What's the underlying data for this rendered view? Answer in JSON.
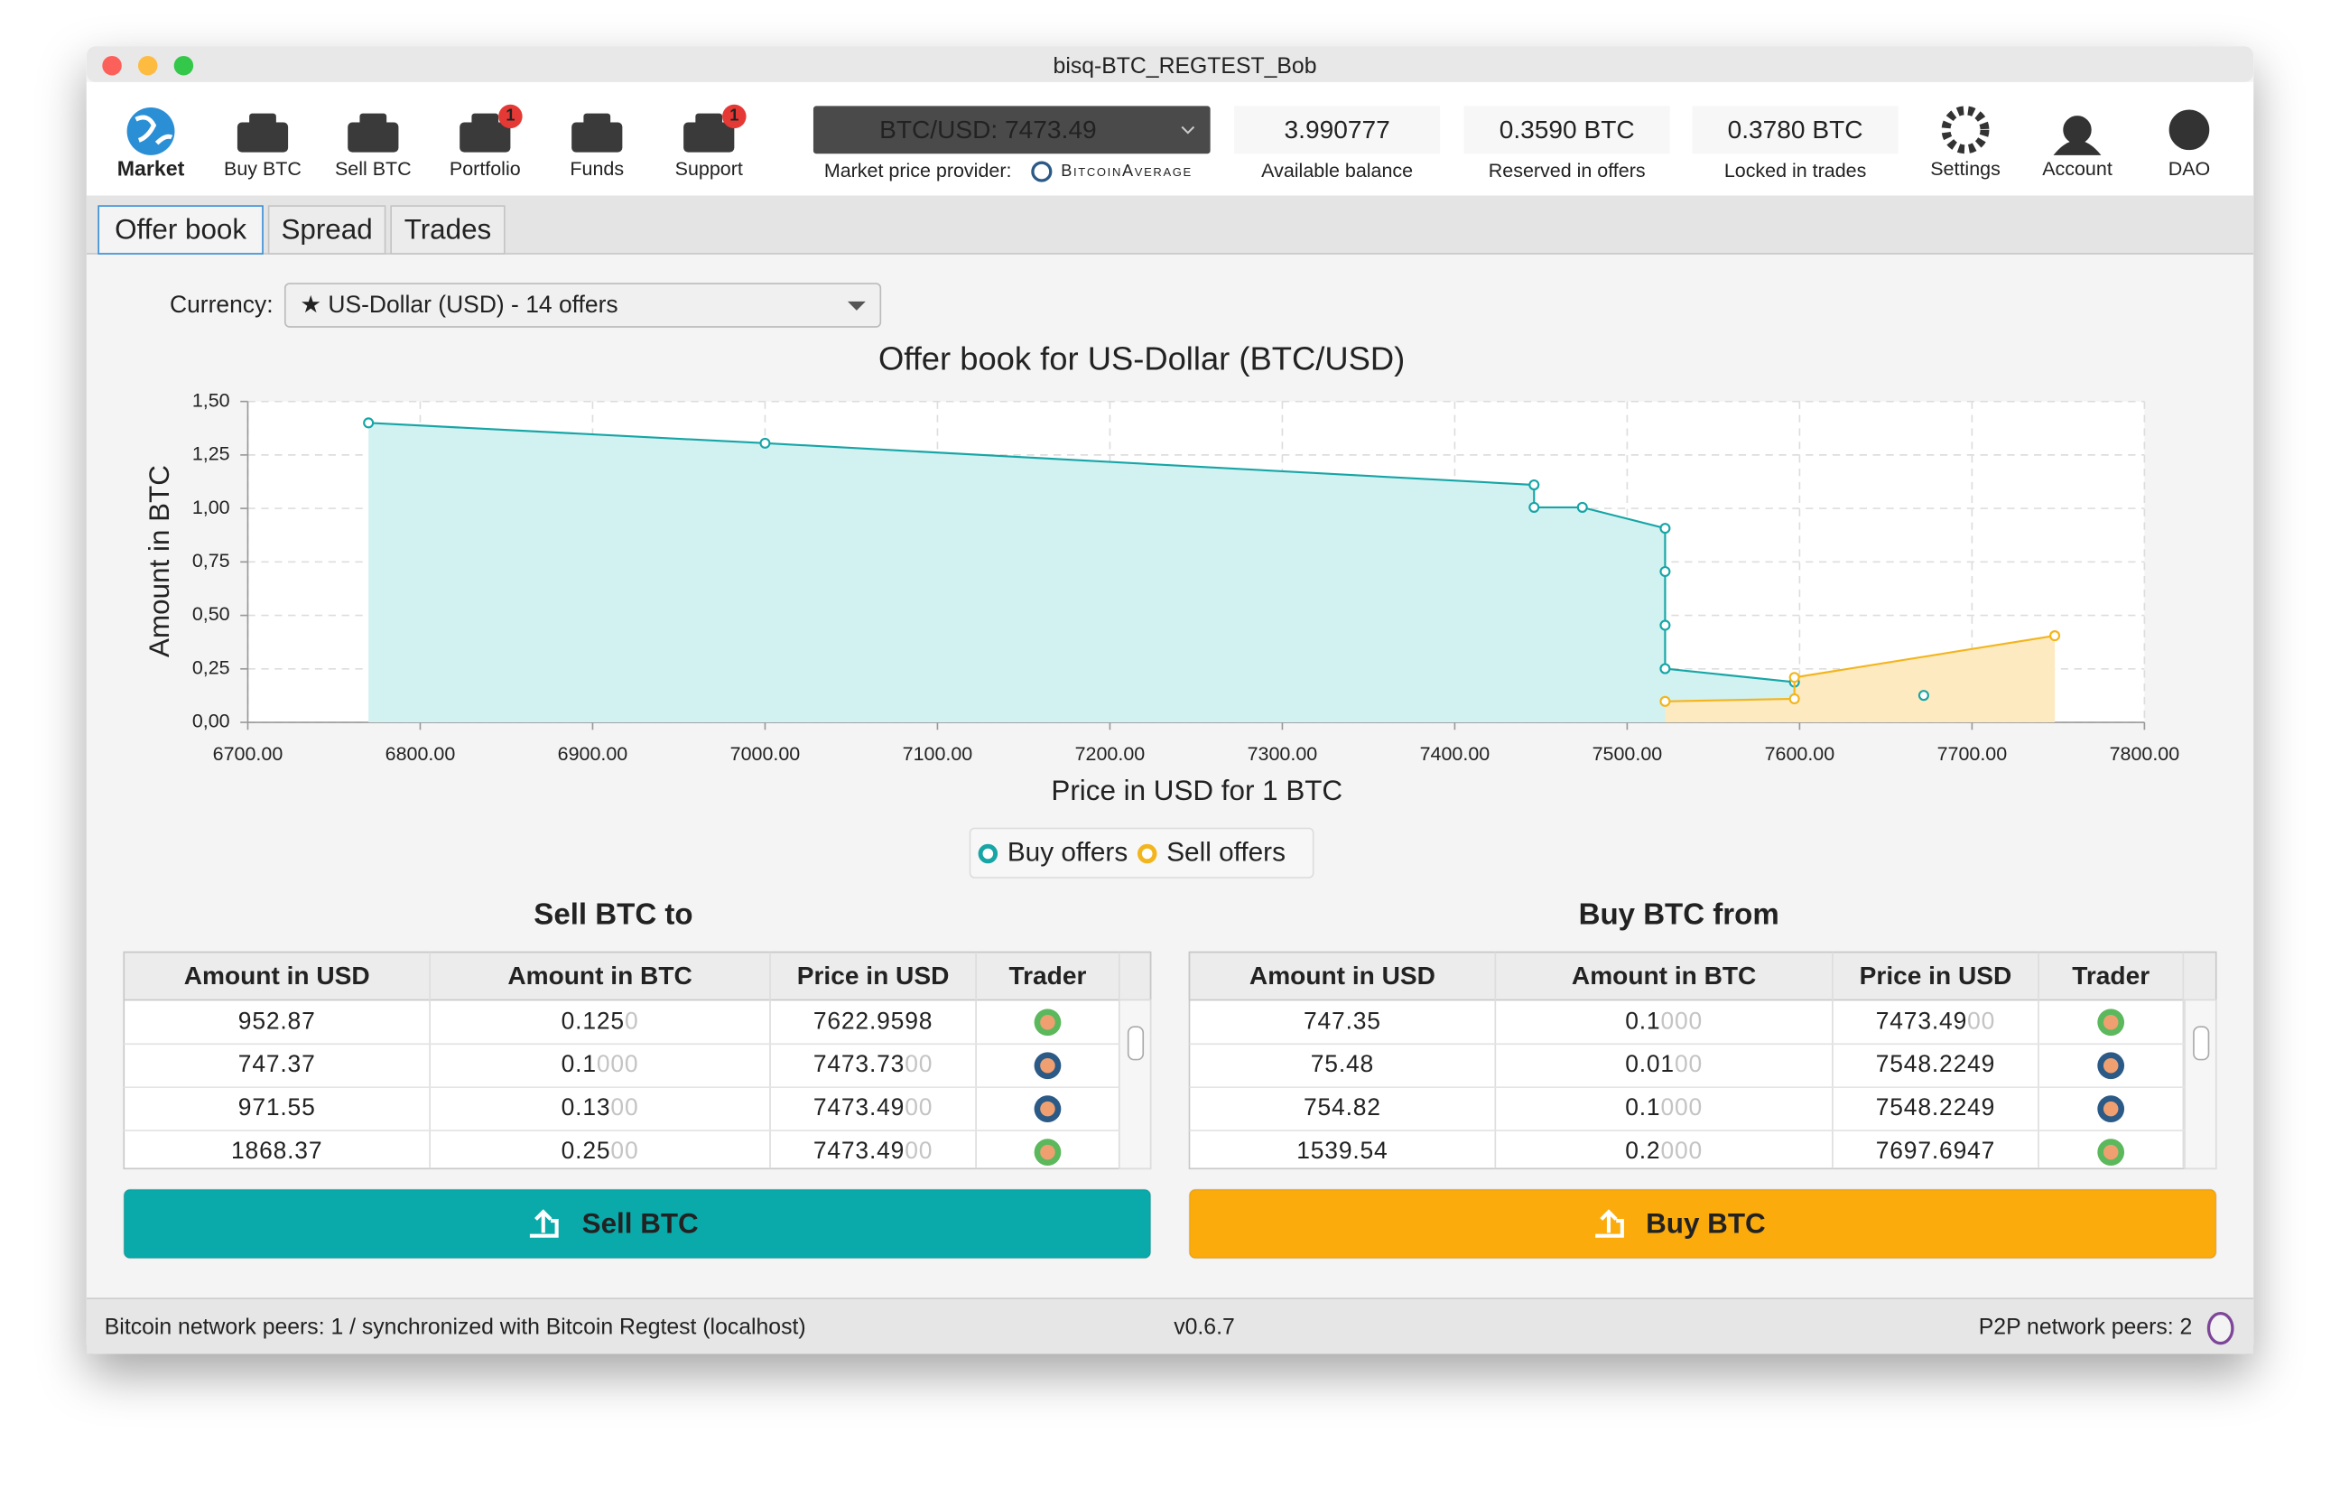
{
  "window": {
    "title": "bisq-BTC_REGTEST_Bob"
  },
  "toolbar": {
    "nav": [
      {
        "label": "Market"
      },
      {
        "label": "Buy BTC"
      },
      {
        "label": "Sell BTC"
      },
      {
        "label": "Portfolio",
        "badge": "1"
      },
      {
        "label": "Funds"
      },
      {
        "label": "Support",
        "badge": "1"
      }
    ],
    "price": {
      "value": "BTC/USD: 7473.49",
      "provider_label": "Market price provider:",
      "provider": "BitcoinAverage"
    },
    "balances": [
      {
        "value": "3.990777",
        "label": "Available balance"
      },
      {
        "value": "0.3590 BTC",
        "label": "Reserved in offers"
      },
      {
        "value": "0.3780 BTC",
        "label": "Locked in trades"
      }
    ],
    "right_nav": [
      {
        "label": "Settings"
      },
      {
        "label": "Account"
      },
      {
        "label": "DAO"
      }
    ]
  },
  "tabs": [
    "Offer book",
    "Spread",
    "Trades"
  ],
  "currency": {
    "label": "Currency:",
    "value": "★ US-Dollar (USD) - 14 offers"
  },
  "chart_data": {
    "type": "area",
    "title": "Offer book for US-Dollar (BTC/USD)",
    "x_label": "Price in USD for 1 BTC",
    "y_label": "Amount in BTC",
    "xlim": [
      6700,
      7800
    ],
    "xticks": [
      {
        "value": 6700,
        "label": "6700.00"
      },
      {
        "value": 6800,
        "label": "6800.00"
      },
      {
        "value": 6900,
        "label": "6900.00"
      },
      {
        "value": 7000,
        "label": "7000.00"
      },
      {
        "value": 7100,
        "label": "7100.00"
      },
      {
        "value": 7200,
        "label": "7200.00"
      },
      {
        "value": 7300,
        "label": "7300.00"
      },
      {
        "value": 7400,
        "label": "7400.00"
      },
      {
        "value": 7500,
        "label": "7500.00"
      },
      {
        "value": 7600,
        "label": "7600.00"
      },
      {
        "value": 7700,
        "label": "7700.00"
      },
      {
        "value": 7800,
        "label": "7800.00"
      }
    ],
    "ylim": [
      0,
      1.5
    ],
    "yticks": [
      {
        "value": 0,
        "label": "0,00"
      },
      {
        "value": 0.25,
        "label": "0,25"
      },
      {
        "value": 0.5,
        "label": "0,50"
      },
      {
        "value": 0.75,
        "label": "0,75"
      },
      {
        "value": 1,
        "label": "1,00"
      },
      {
        "value": 1.25,
        "label": "1,25"
      },
      {
        "value": 1.5,
        "label": "1,50"
      }
    ],
    "grid": true,
    "series": [
      {
        "name": "Buy offers",
        "color": "#17a5a6",
        "fill": "#d2f1f1",
        "x": [
          6770,
          7000,
          7446,
          7446,
          7474,
          7522,
          7522,
          7522,
          7522,
          7597,
          null,
          7672
        ],
        "values": [
          1.4,
          1.305,
          1.11,
          1.005,
          1.005,
          0.907,
          0.705,
          0.454,
          0.251,
          0.188,
          null,
          0.126
        ]
      },
      {
        "name": "Sell offers",
        "color": "#f3b51d",
        "fill": "#fdeac0",
        "x": [
          7522,
          7597,
          7597,
          7748
        ],
        "values": [
          0.098,
          0.11,
          0.21,
          0.405
        ]
      }
    ]
  },
  "sell_table": {
    "title": "Sell BTC to",
    "columns": [
      "Amount in USD",
      "Amount in BTC",
      "Price in USD",
      "Trader"
    ],
    "rows": [
      [
        "952.87",
        {
          "main": "0.125",
          "pad": "0"
        },
        "7622.9598"
      ],
      [
        "747.37",
        {
          "main": "0.1",
          "pad": "000"
        },
        {
          "main": "7473.73",
          "pad": "00"
        }
      ],
      [
        "971.55",
        {
          "main": "0.13",
          "pad": "00"
        },
        {
          "main": "7473.49",
          "pad": "00"
        }
      ],
      [
        "1868.37",
        {
          "main": "0.25",
          "pad": "00"
        },
        {
          "main": "7473.49",
          "pad": "00"
        }
      ]
    ],
    "button": "Sell BTC"
  },
  "buy_table": {
    "title": "Buy BTC from",
    "columns": [
      "Amount in USD",
      "Amount in BTC",
      "Price in USD",
      "Trader"
    ],
    "rows": [
      [
        "747.35",
        {
          "main": "0.1",
          "pad": "000"
        },
        {
          "main": "7473.49",
          "pad": "00"
        }
      ],
      [
        "75.48",
        {
          "main": "0.01",
          "pad": "00"
        },
        "7548.2249"
      ],
      [
        "754.82",
        {
          "main": "0.1",
          "pad": "000"
        },
        "7548.2249"
      ],
      [
        "1539.54",
        {
          "main": "0.2",
          "pad": "000"
        },
        "7697.6947"
      ]
    ],
    "button": "Buy BTC"
  },
  "status": {
    "left": "Bitcoin network peers: 1 / synchronized with Bitcoin Regtest (localhost)",
    "version": "v0.6.7",
    "right": "P2P network peers: 2"
  }
}
